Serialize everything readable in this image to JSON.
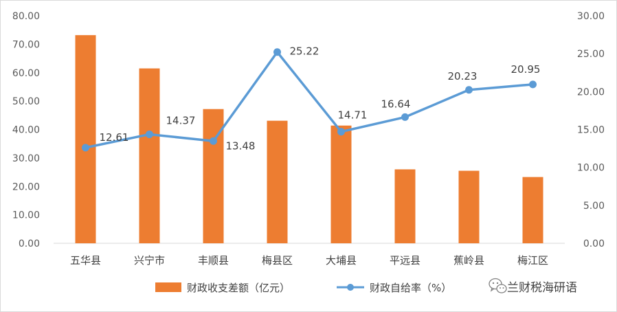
{
  "chart_data": {
    "type": "bar+line",
    "categories": [
      "五华县",
      "兴宁市",
      "丰顺县",
      "梅县区",
      "大埔县",
      "平远县",
      "蕉岭县",
      "梅江区"
    ],
    "series": [
      {
        "name": "财政收支差额（亿元）",
        "type": "bar",
        "axis": "left",
        "color": "#ED7D31",
        "values": [
          73.2,
          61.5,
          47.2,
          43.1,
          41.4,
          26.0,
          25.5,
          23.3
        ]
      },
      {
        "name": "财政自给率（%）",
        "type": "line",
        "axis": "right",
        "color": "#5B9BD5",
        "values": [
          12.61,
          14.37,
          13.48,
          25.22,
          14.71,
          16.64,
          20.23,
          20.95
        ],
        "labels": [
          "12.61",
          "14.37",
          "13.48",
          "25.22",
          "14.71",
          "16.64",
          "20.23",
          "20.95"
        ]
      }
    ],
    "y_left": {
      "min": 0,
      "max": 80,
      "ticks": [
        "0.00",
        "10.00",
        "20.00",
        "30.00",
        "40.00",
        "50.00",
        "60.00",
        "70.00",
        "80.00"
      ]
    },
    "y_right": {
      "min": 0,
      "max": 30,
      "ticks": [
        "0.00",
        "5.00",
        "10.00",
        "15.00",
        "20.00",
        "25.00",
        "30.00"
      ]
    },
    "grid": false,
    "legend": "bottom"
  },
  "watermark": {
    "text": "兰财税海研语",
    "icon": "wechat-icon"
  }
}
